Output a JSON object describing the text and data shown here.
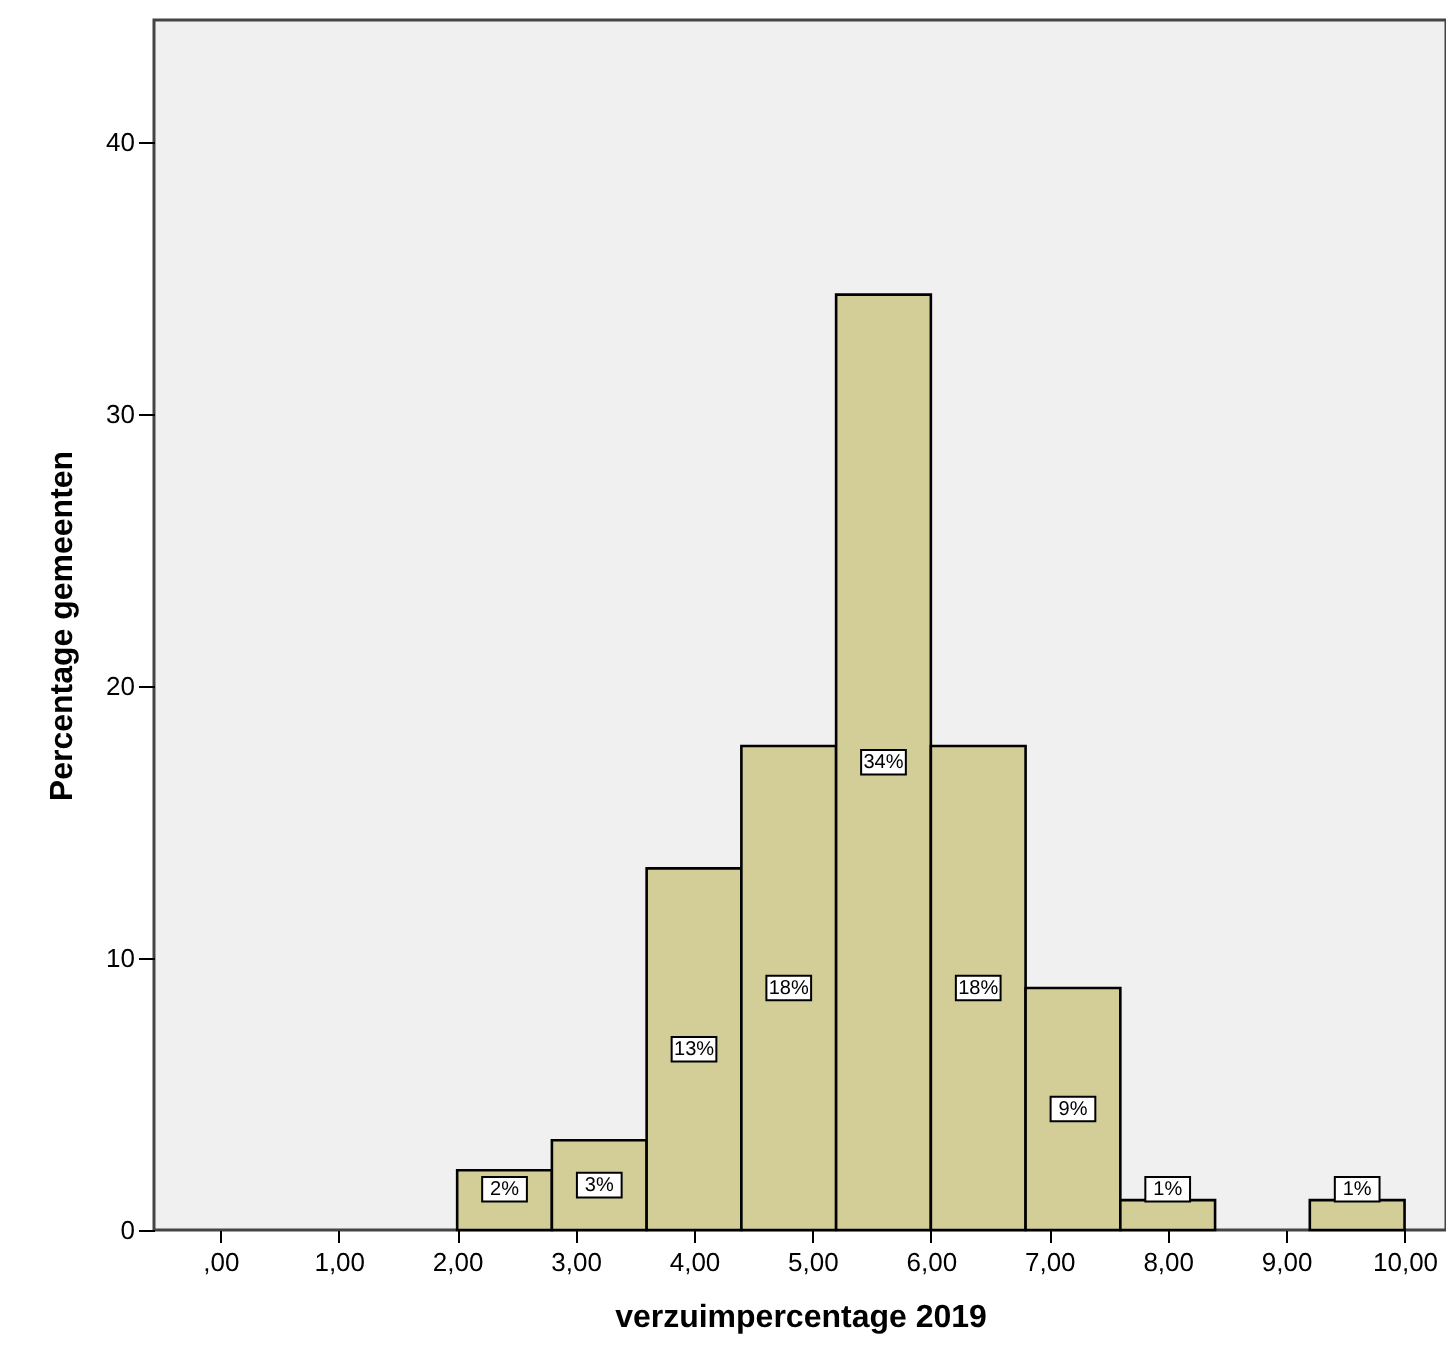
{
  "chart_data": {
    "type": "histogram",
    "xlabel": "verzuimpercentage 2019",
    "ylabel": "Percentage gemeenten",
    "bins": [
      2.0,
      2.8,
      3.6,
      4.4,
      5.2,
      6.0,
      6.8,
      7.6,
      8.4,
      9.2,
      10.0
    ],
    "values": [
      2.2,
      3.3,
      13.3,
      17.8,
      34.4,
      17.8,
      8.9,
      1.1,
      0,
      1.1
    ],
    "value_labels": [
      "2%",
      "3%",
      "13%",
      "18%",
      "34%",
      "18%",
      "9%",
      "1%",
      null,
      "1%"
    ],
    "color": "#d3ce97",
    "xlim": [
      -0.56,
      10.35
    ],
    "xticks": [
      {
        "value": 0,
        "label": ",00"
      },
      {
        "value": 1,
        "label": "1,00"
      },
      {
        "value": 2,
        "label": "2,00"
      },
      {
        "value": 3,
        "label": "3,00"
      },
      {
        "value": 4,
        "label": "4,00"
      },
      {
        "value": 5,
        "label": "5,00"
      },
      {
        "value": 6,
        "label": "6,00"
      },
      {
        "value": 7,
        "label": "7,00"
      },
      {
        "value": 8,
        "label": "8,00"
      },
      {
        "value": 9,
        "label": "9,00"
      },
      {
        "value": 10,
        "label": "10,00"
      }
    ],
    "ylim": [
      0,
      44.5
    ],
    "yticks": [
      0,
      10,
      20,
      30,
      40
    ],
    "grid": false
  }
}
